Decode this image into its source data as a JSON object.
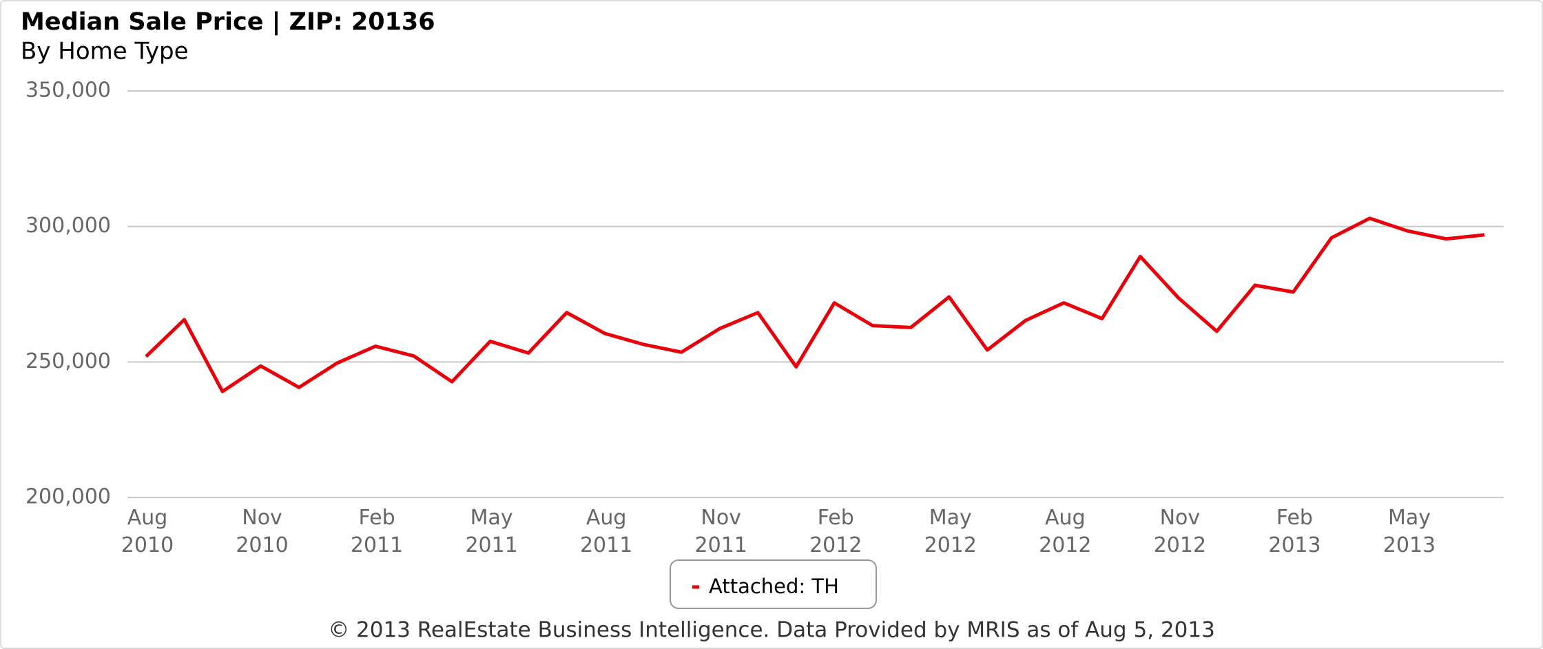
{
  "chart_data": {
    "type": "line",
    "title": "Median Sale Price | ZIP: 20136",
    "subtitle": "By Home Type",
    "footer": "© 2013 RealEstate Business Intelligence. Data Provided by MRIS as of Aug 5, 2013",
    "categories": [
      "Aug 2010",
      null,
      null,
      "Nov 2010",
      null,
      null,
      "Feb 2011",
      null,
      null,
      "May 2011",
      null,
      null,
      "Aug 2011",
      null,
      null,
      "Nov 2011",
      null,
      null,
      "Feb 2012",
      null,
      null,
      "May 2012",
      null,
      null,
      "Aug 2012",
      null,
      null,
      "Nov 2012",
      null,
      null,
      "Feb 2013",
      null,
      null,
      "May 2013",
      null,
      null
    ],
    "series": [
      {
        "name": "Attached: TH",
        "color": "#e8000b",
        "values": [
          252000,
          265600,
          239100,
          248500,
          240600,
          249600,
          255800,
          252200,
          242700,
          257600,
          253300,
          268200,
          260500,
          256500,
          253600,
          262300,
          268200,
          248200,
          271800,
          263400,
          262700,
          274000,
          254400,
          265300,
          271800,
          266000,
          288900,
          273600,
          261300,
          278300,
          275800,
          295800,
          303000,
          298300,
          295400,
          296900
        ]
      }
    ],
    "ylim": [
      200000,
      350000
    ],
    "yticks": [
      {
        "value": 200000,
        "label": "200,000"
      },
      {
        "value": 250000,
        "label": "250,000"
      },
      {
        "value": 300000,
        "label": "300,000"
      },
      {
        "value": 350000,
        "label": "350,000"
      }
    ],
    "grid": true
  }
}
